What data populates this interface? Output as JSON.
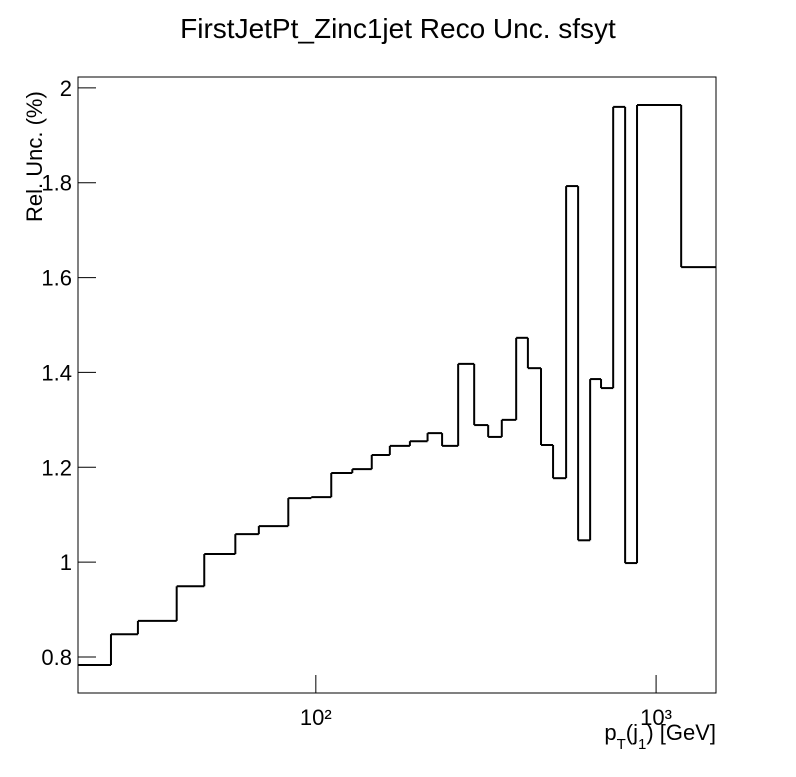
{
  "chart_data": {
    "type": "histogram",
    "title": "FirstJetPt_Zinc1jet Reco Unc. sfsyt",
    "x_label": "pT(j1) [GeV]",
    "y_label": "Rel. Unc. (%)",
    "log_x": true,
    "color": "#000000",
    "bins": [
      20,
      25,
      30,
      39,
      47,
      58,
      68,
      83,
      97,
      111,
      128,
      146,
      165,
      189,
      213,
      235,
      262,
      292,
      321,
      352,
      388,
      420,
      459,
      498,
      544,
      590,
      640,
      689,
      748,
      811,
      879,
      1185,
      1500
    ],
    "values": [
      0.783,
      0.848,
      0.876,
      0.949,
      1.017,
      1.059,
      1.076,
      1.135,
      1.137,
      1.188,
      1.196,
      1.226,
      1.245,
      1.255,
      1.272,
      1.245,
      1.418,
      1.289,
      1.264,
      1.3,
      1.473,
      1.409,
      1.247,
      1.177,
      1.793,
      1.046,
      1.386,
      1.367,
      1.96,
      0.998,
      1.964,
      1.622
    ],
    "xlim": [
      20,
      1500
    ],
    "ylim": [
      0.724,
      2.023
    ],
    "xticks": [
      {
        "value": 100,
        "label": "10²"
      },
      {
        "value": 1000,
        "label": "10³"
      }
    ],
    "yticks": [
      0.8,
      1,
      1.2,
      1.4,
      1.6,
      1.8,
      2
    ]
  }
}
